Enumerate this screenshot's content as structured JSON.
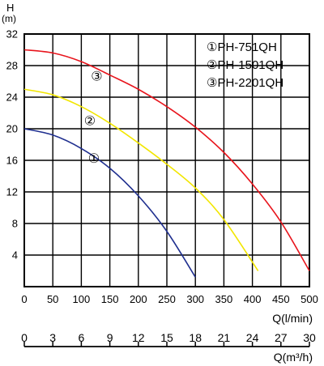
{
  "chart_data": {
    "type": "line",
    "yaxis": {
      "label": "H",
      "unit": "(m)",
      "min": 0,
      "max": 32,
      "ticks": [
        4,
        8,
        12,
        16,
        20,
        24,
        28,
        32
      ]
    },
    "xaxis_lpm": {
      "label": "Q(l/min)",
      "min": 0,
      "max": 500,
      "ticks": [
        0,
        50,
        100,
        150,
        200,
        250,
        300,
        350,
        400,
        450,
        500
      ]
    },
    "xaxis_m3h": {
      "label": "Q(m³/h)",
      "min": 0,
      "max": 30,
      "ticks": [
        0,
        3,
        6,
        9,
        12,
        15,
        18,
        21,
        24,
        27,
        30
      ]
    },
    "grid": true,
    "legend": {
      "position": "top-right",
      "entries": [
        "①PH-751QH",
        "②PH-1501QH",
        "③PH-2201QH"
      ]
    },
    "series": [
      {
        "name": "①PH-751QH",
        "marker": "①",
        "marker_at": [
          122,
          16.2
        ],
        "color": "#1f2f8f",
        "points": [
          [
            0,
            20
          ],
          [
            50,
            19.2
          ],
          [
            100,
            17.5
          ],
          [
            150,
            15
          ],
          [
            200,
            11.5
          ],
          [
            250,
            7
          ],
          [
            300,
            1.2
          ]
        ]
      },
      {
        "name": "②PH-1501QH",
        "marker": "②",
        "marker_at": [
          115,
          21.0
        ],
        "color": "#f2e600",
        "points": [
          [
            0,
            25
          ],
          [
            50,
            24.3
          ],
          [
            100,
            22.8
          ],
          [
            150,
            20.7
          ],
          [
            200,
            18.2
          ],
          [
            250,
            15.5
          ],
          [
            300,
            12.5
          ],
          [
            350,
            8.5
          ],
          [
            410,
            2
          ]
        ]
      },
      {
        "name": "③PH-2201QH",
        "marker": "③",
        "marker_at": [
          127,
          26.6
        ],
        "color": "#e8141c",
        "points": [
          [
            0,
            30
          ],
          [
            50,
            29.6
          ],
          [
            100,
            28.5
          ],
          [
            150,
            26.8
          ],
          [
            200,
            25
          ],
          [
            250,
            22.8
          ],
          [
            300,
            20.2
          ],
          [
            350,
            17
          ],
          [
            400,
            13
          ],
          [
            450,
            8.2
          ],
          [
            500,
            2
          ]
        ]
      }
    ]
  }
}
